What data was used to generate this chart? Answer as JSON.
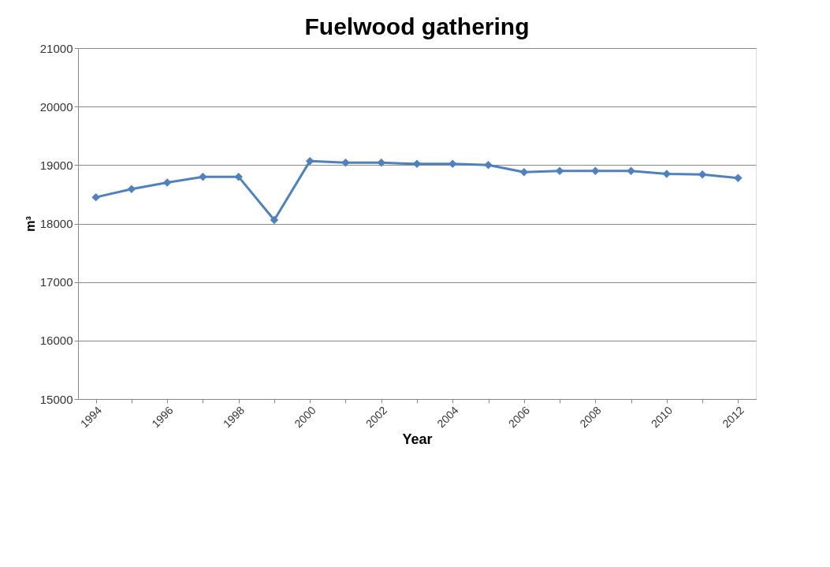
{
  "chart_data": {
    "type": "line",
    "title": "Fuelwood gathering",
    "xlabel": "Year",
    "ylabel": "m³",
    "categories": [
      "1994",
      null,
      "1996",
      null,
      "1998",
      null,
      "2000",
      null,
      "2002",
      null,
      "2004",
      null,
      "2006",
      null,
      "2008",
      null,
      "2010",
      null,
      "2012"
    ],
    "series": [
      {
        "color": "#4f81bd",
        "values": [
          18450,
          18590,
          18700,
          18800,
          18800,
          18060,
          19070,
          19040,
          19040,
          19020,
          19020,
          19000,
          18880,
          18900,
          18900,
          18900,
          18850,
          18840,
          18780
        ]
      }
    ],
    "ylim": [
      15000,
      21000
    ],
    "yticks": [
      15000,
      16000,
      17000,
      18000,
      19000,
      20000,
      21000
    ],
    "grid": "y",
    "legend": false,
    "marker": "diamond",
    "line_style": "solid"
  }
}
